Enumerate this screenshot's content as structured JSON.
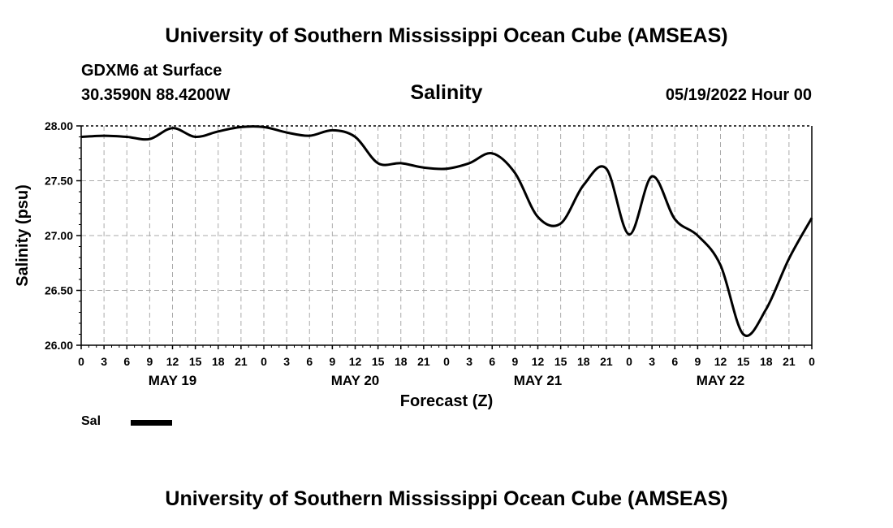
{
  "header": {
    "title": "University of Southern Mississippi Ocean Cube (AMSEAS)",
    "station_line1": "GDXM6 at Surface",
    "station_line2": "30.3590N  88.4200W",
    "datetime": "05/19/2022 Hour 00"
  },
  "footer": {
    "title": "University of Southern Mississippi Ocean Cube (AMSEAS)"
  },
  "legend": {
    "label": "Sal",
    "color": "#000000"
  },
  "chart_data": {
    "type": "line",
    "title": "Salinity",
    "xlabel": "Forecast (Z)",
    "ylabel": "Salinity (psu)",
    "ylim": [
      26.0,
      28.0
    ],
    "xlim": [
      0,
      96
    ],
    "x_unit": "hours since 05/19/2022 00Z",
    "yticks": [
      "26.00",
      "26.50",
      "27.00",
      "27.50",
      "28.00"
    ],
    "ytick_values": [
      26.0,
      26.5,
      27.0,
      27.5,
      28.0
    ],
    "xtick_labels": [
      "0",
      "3",
      "6",
      "9",
      "12",
      "15",
      "18",
      "21",
      "0",
      "3",
      "6",
      "9",
      "12",
      "15",
      "18",
      "21",
      "0",
      "3",
      "6",
      "9",
      "12",
      "15",
      "18",
      "21",
      "0",
      "3",
      "6",
      "9",
      "12",
      "15",
      "18",
      "21",
      "0"
    ],
    "date_labels": [
      {
        "text": "MAY 19",
        "hour": 12
      },
      {
        "text": "MAY 20",
        "hour": 36
      },
      {
        "text": "MAY 21",
        "hour": 60
      },
      {
        "text": "MAY 22",
        "hour": 84
      }
    ],
    "grid": true,
    "series": [
      {
        "name": "Sal",
        "color": "#000000",
        "x": [
          0,
          3,
          6,
          9,
          12,
          15,
          18,
          21,
          24,
          27,
          30,
          33,
          36,
          39,
          42,
          45,
          48,
          51,
          54,
          57,
          60,
          63,
          66,
          69,
          72,
          75,
          78,
          81,
          84,
          87,
          90,
          93,
          96
        ],
        "y": [
          27.9,
          27.91,
          27.9,
          27.88,
          27.98,
          27.9,
          27.95,
          27.99,
          27.99,
          27.94,
          27.91,
          27.96,
          27.9,
          27.66,
          27.66,
          27.62,
          27.61,
          27.66,
          27.75,
          27.57,
          27.17,
          27.11,
          27.46,
          27.61,
          27.01,
          27.54,
          27.15,
          27.0,
          26.73,
          26.1,
          26.33,
          26.79,
          27.16
        ]
      }
    ]
  }
}
